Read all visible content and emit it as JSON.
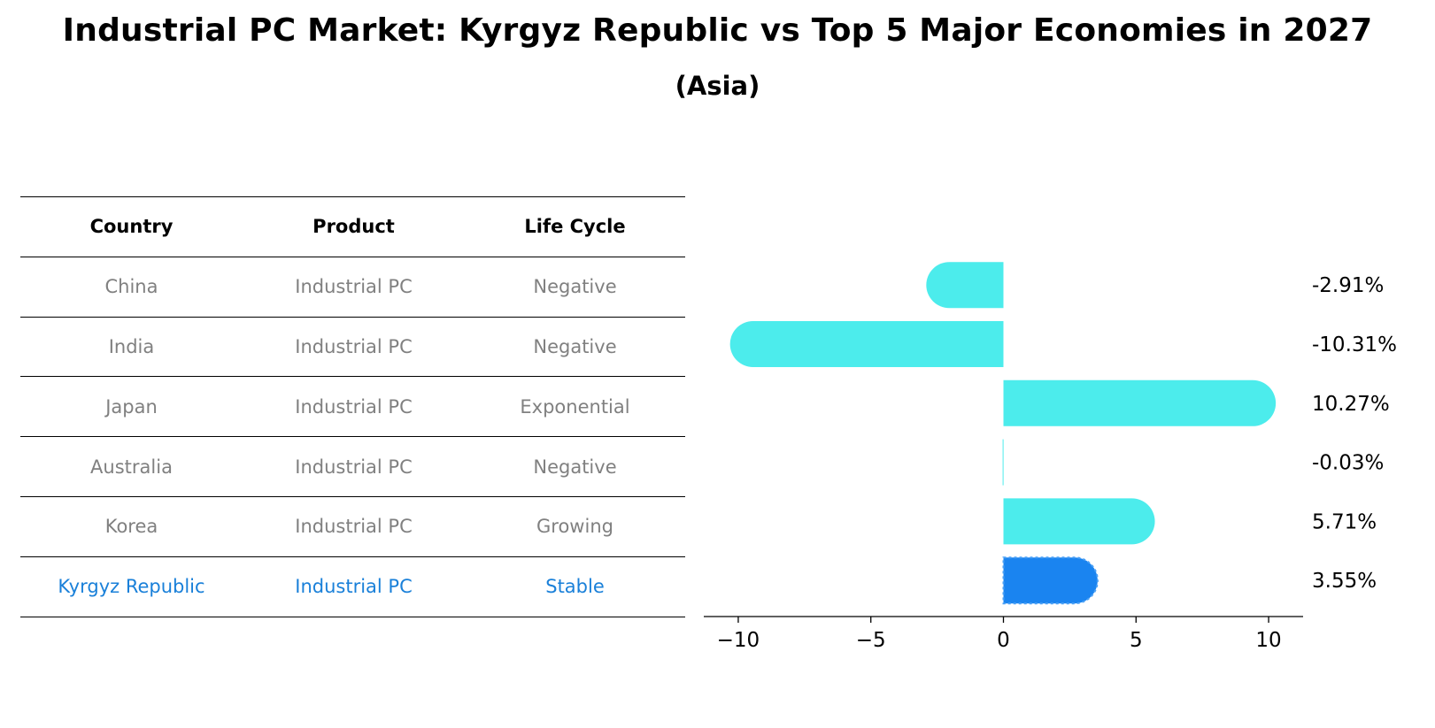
{
  "title": "Industrial PC Market: Kyrgyz Republic vs Top 5 Major Economies in 2027",
  "subtitle": "(Asia)",
  "table": {
    "headers": [
      "Country",
      "Product",
      "Life Cycle"
    ],
    "rows": [
      [
        "China",
        "Industrial PC",
        "Negative"
      ],
      [
        "India",
        "Industrial PC",
        "Negative"
      ],
      [
        "Japan",
        "Industrial PC",
        "Exponential"
      ],
      [
        "Australia",
        "Industrial PC",
        "Negative"
      ],
      [
        "Korea",
        "Industrial PC",
        "Growing"
      ],
      [
        "Kyrgyz Republic",
        "Industrial PC",
        "Stable"
      ]
    ],
    "highlight_row": 5
  },
  "chart_data": {
    "type": "bar",
    "orientation": "horizontal",
    "categories": [
      "China",
      "India",
      "Japan",
      "Australia",
      "Korea",
      "Kyrgyz Republic"
    ],
    "values": [
      -2.91,
      -10.31,
      10.27,
      -0.03,
      5.71,
      3.55
    ],
    "value_labels": [
      "-2.91%",
      "-10.31%",
      "10.27%",
      "-0.03%",
      "5.71%",
      "3.55%"
    ],
    "xlim": [
      -11.3,
      11.3
    ],
    "xticks": [
      -10,
      -5,
      0,
      5,
      10
    ],
    "xtick_labels": [
      "−10",
      "−5",
      "0",
      "5",
      "10"
    ],
    "colors": {
      "bar": "#4cecec",
      "highlight": "#1a84f0"
    },
    "highlight_index": 5,
    "grid": false
  }
}
